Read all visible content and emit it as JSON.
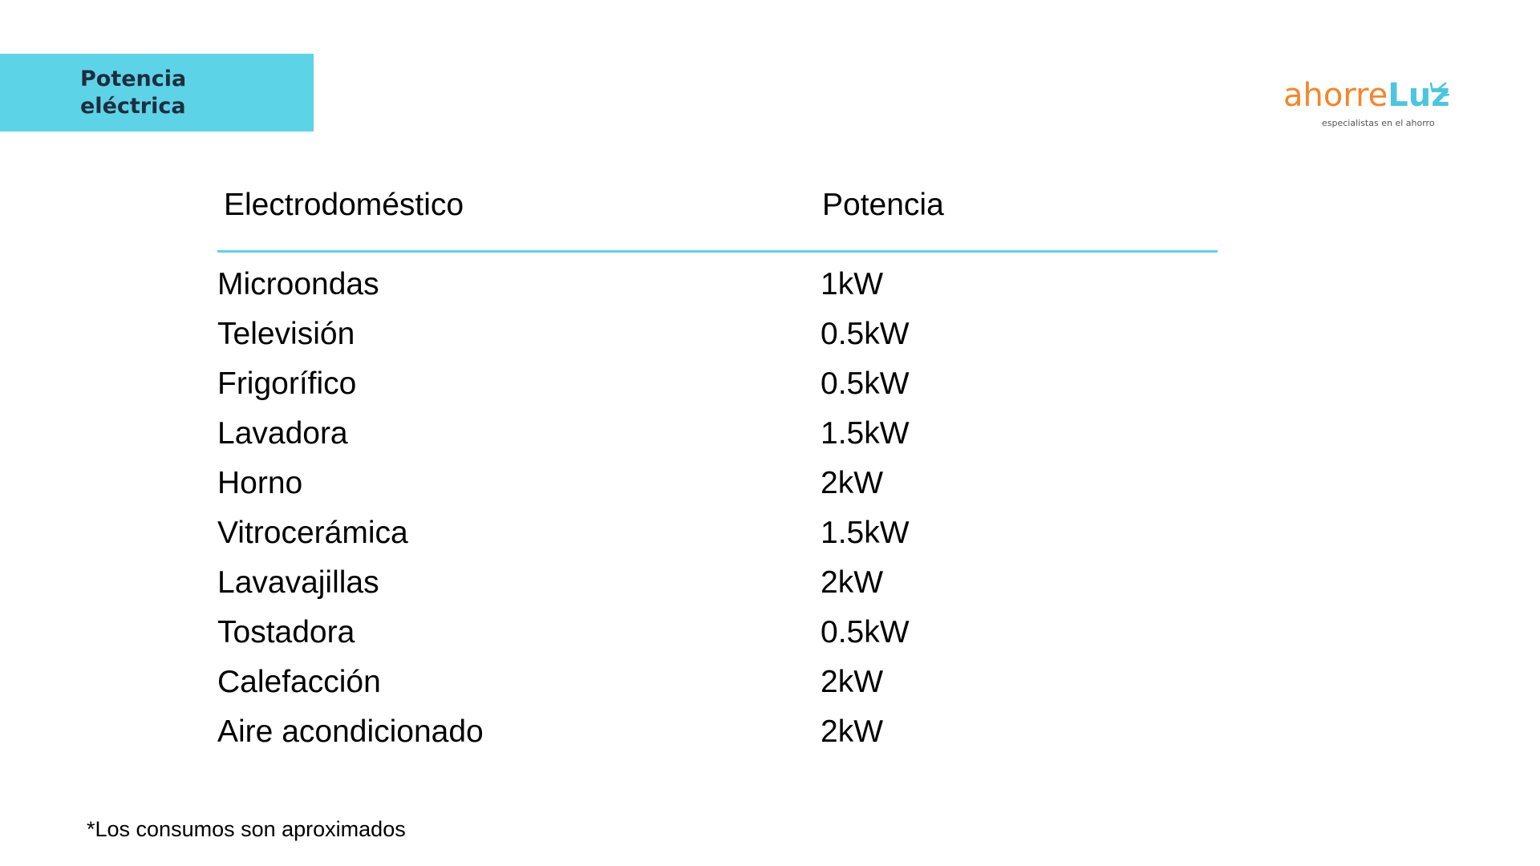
{
  "header": {
    "title": "Potencia eléctrica"
  },
  "logo": {
    "brand_a": "ahorre",
    "brand_b": "Luz",
    "tagline": "especialistas en el ahorro"
  },
  "table": {
    "columns": [
      "Electrodoméstico",
      "Potencia"
    ],
    "rows": [
      [
        "Microondas",
        "1kW"
      ],
      [
        "Televisión",
        "0.5kW"
      ],
      [
        "Frigorífico",
        "0.5kW"
      ],
      [
        "Lavadora",
        "1.5kW"
      ],
      [
        "Horno",
        "2kW"
      ],
      [
        "Vitrocerámica",
        "1.5kW"
      ],
      [
        "Lavavajillas",
        "2kW"
      ],
      [
        "Tostadora",
        "0.5kW"
      ],
      [
        "Calefacción",
        "2kW"
      ],
      [
        "Aire acondicionado",
        "2kW"
      ]
    ]
  },
  "footnote": "*Los consumos son aproximados"
}
